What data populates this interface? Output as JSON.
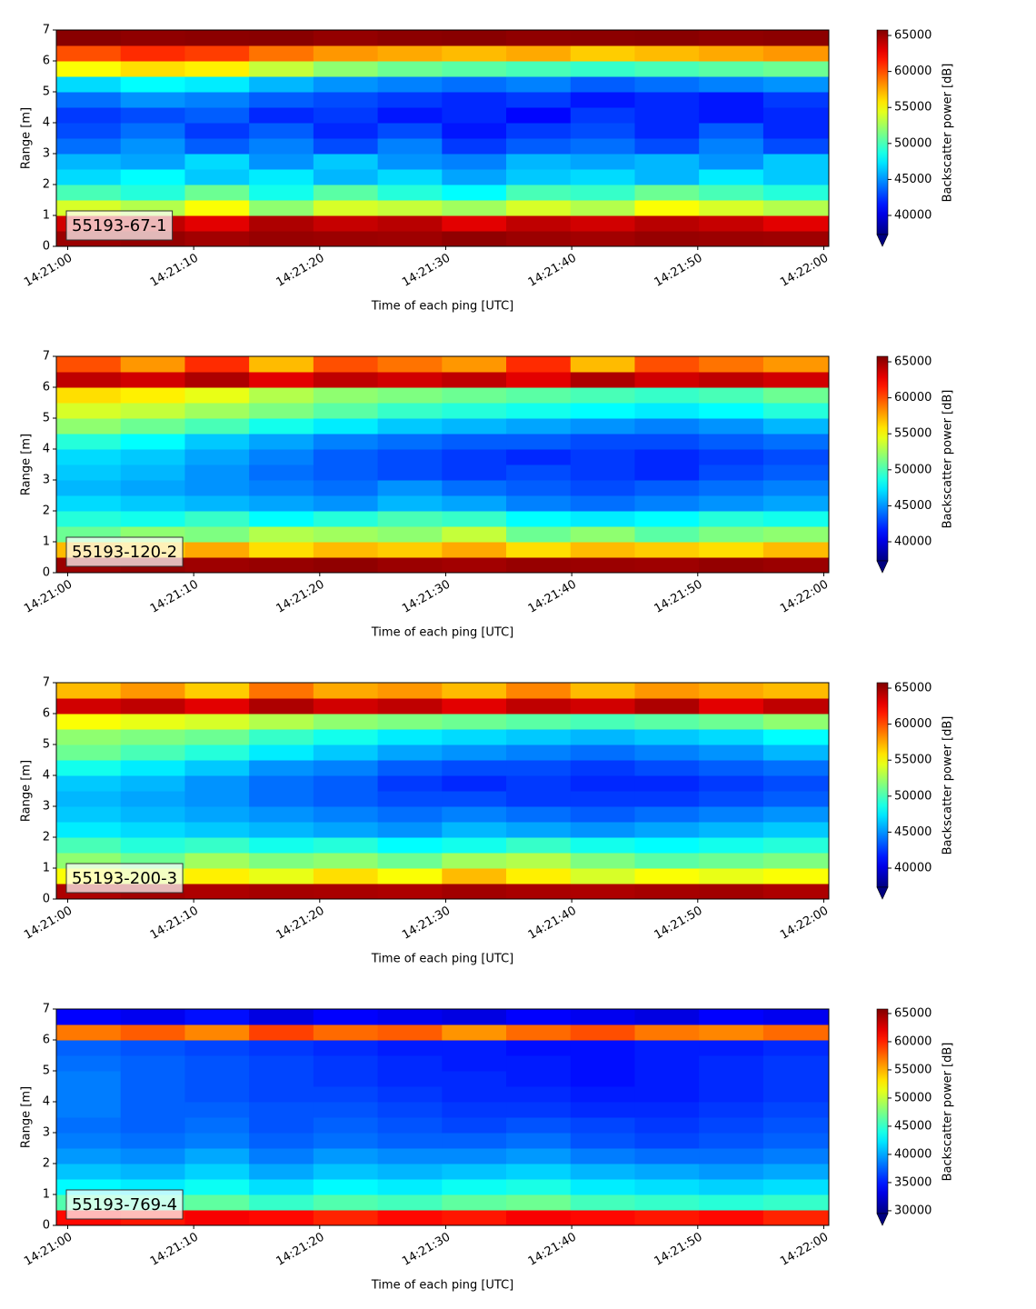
{
  "chart_data": [
    {
      "type": "heatmap",
      "label": "55193-67-1",
      "xlabel": "Time of each ping [UTC]",
      "ylabel": "Range [m]",
      "colorbar_label": "Backscatter power [dB]",
      "colormap": "jet",
      "xlim": [
        51659.1,
        51720.4
      ],
      "xticks": [
        {
          "value": 51660,
          "label": "14:21:00"
        },
        {
          "value": 51670,
          "label": "14:21:10"
        },
        {
          "value": 51680,
          "label": "14:21:20"
        },
        {
          "value": 51690,
          "label": "14:21:30"
        },
        {
          "value": 51700,
          "label": "14:21:40"
        },
        {
          "value": 51710,
          "label": "14:21:50"
        },
        {
          "value": 51720,
          "label": "14:22:00"
        }
      ],
      "ylim": [
        0,
        7
      ],
      "yticks": [
        0,
        1,
        2,
        3,
        4,
        5,
        6,
        7
      ],
      "clim": [
        37350,
        65760
      ],
      "cticks": [
        40000,
        45000,
        50000,
        55000,
        60000,
        65000
      ],
      "xbins": [
        51659.1,
        51664.2,
        51669.3,
        51674.4,
        51679.5,
        51684.6,
        51689.7,
        51694.8,
        51699.9,
        51705.0,
        51710.1,
        51715.2,
        51720.4
      ],
      "ybins": [
        0,
        0.5,
        1,
        1.5,
        2,
        2.5,
        3,
        3.5,
        4,
        4.5,
        5,
        5.5,
        6,
        6.5,
        7
      ],
      "z": [
        [
          65000,
          65200,
          64800,
          65100,
          65000,
          64900,
          65300,
          65000,
          64800,
          65100,
          65000,
          64900
        ],
        [
          63500,
          64000,
          63000,
          64500,
          63800,
          64200,
          63000,
          64000,
          63500,
          64200,
          63800,
          63000
        ],
        [
          54000,
          53000,
          55000,
          52000,
          54000,
          53500,
          52500,
          54000,
          53000,
          55000,
          54000,
          53000
        ],
        [
          50000,
          49000,
          51000,
          48500,
          50500,
          49000,
          48000,
          50000,
          49500,
          51000,
          50000,
          49000
        ],
        [
          47000,
          48000,
          46500,
          47500,
          46000,
          47000,
          45500,
          46500,
          47000,
          46000,
          47500,
          46500
        ],
        [
          46000,
          45500,
          47000,
          45000,
          46500,
          45000,
          44500,
          46000,
          45500,
          46000,
          45000,
          46500
        ],
        [
          44000,
          45000,
          43500,
          44500,
          43000,
          44500,
          42500,
          43500,
          44000,
          43000,
          44500,
          43000
        ],
        [
          43000,
          44000,
          42500,
          43500,
          42000,
          43000,
          41500,
          42500,
          43000,
          42000,
          43500,
          42000
        ],
        [
          42500,
          43000,
          43500,
          42000,
          42500,
          41500,
          42000,
          41000,
          42500,
          42000,
          41500,
          42000
        ],
        [
          44000,
          45000,
          44500,
          43500,
          43000,
          42500,
          42000,
          42500,
          41500,
          42000,
          41500,
          42500
        ],
        [
          47000,
          48000,
          47500,
          46000,
          45000,
          44500,
          44000,
          44500,
          43500,
          44000,
          44500,
          45000
        ],
        [
          55000,
          56000,
          55500,
          53500,
          52000,
          51000,
          50500,
          50000,
          49500,
          50000,
          50500,
          51000
        ],
        [
          60000,
          61000,
          60500,
          59000,
          58000,
          57500,
          57000,
          57500,
          56500,
          57000,
          57500,
          58000
        ],
        [
          65500,
          65300,
          65400,
          65500,
          65200,
          65400,
          65500,
          65300,
          65400,
          65500,
          65300,
          65400
        ]
      ]
    },
    {
      "type": "heatmap",
      "label": "55193-120-2",
      "xlabel": "Time of each ping [UTC]",
      "ylabel": "Range [m]",
      "colorbar_label": "Backscatter power [dB]",
      "colormap": "jet",
      "xlim": [
        51659.1,
        51720.4
      ],
      "xticks": [
        {
          "value": 51660,
          "label": "14:21:00"
        },
        {
          "value": 51670,
          "label": "14:21:10"
        },
        {
          "value": 51680,
          "label": "14:21:20"
        },
        {
          "value": 51690,
          "label": "14:21:30"
        },
        {
          "value": 51700,
          "label": "14:21:40"
        },
        {
          "value": 51710,
          "label": "14:21:50"
        },
        {
          "value": 51720,
          "label": "14:22:00"
        }
      ],
      "ylim": [
        0,
        7
      ],
      "yticks": [
        0,
        1,
        2,
        3,
        4,
        5,
        6,
        7
      ],
      "clim": [
        37350,
        65760
      ],
      "cticks": [
        40000,
        45000,
        50000,
        55000,
        60000,
        65000
      ],
      "xbins": [
        51659.1,
        51664.2,
        51669.3,
        51674.4,
        51679.5,
        51684.6,
        51689.7,
        51694.8,
        51699.9,
        51705.0,
        51710.1,
        51715.2,
        51720.4
      ],
      "ybins": [
        0,
        0.5,
        1,
        1.5,
        2,
        2.5,
        3,
        3.5,
        4,
        4.5,
        5,
        5.5,
        6,
        6.5,
        7
      ],
      "z": [
        [
          65000,
          65200,
          64900,
          65100,
          65300,
          65000,
          64800,
          65100,
          65000,
          64900,
          65200,
          65000
        ],
        [
          57000,
          56500,
          57500,
          56000,
          57000,
          56500,
          57500,
          56000,
          57000,
          56500,
          56000,
          57000
        ],
        [
          51000,
          52000,
          51500,
          53000,
          52500,
          52000,
          53500,
          51000,
          52000,
          50500,
          51500,
          52000
        ],
        [
          49000,
          48500,
          49500,
          48000,
          49000,
          50000,
          49500,
          48000,
          47500,
          48000,
          49000,
          48500
        ],
        [
          47000,
          46500,
          46000,
          45500,
          45000,
          46000,
          45500,
          44500,
          44000,
          44500,
          45000,
          45500
        ],
        [
          46000,
          45500,
          45000,
          44500,
          44000,
          45000,
          44000,
          43500,
          43000,
          43500,
          44000,
          44500
        ],
        [
          46500,
          46000,
          45000,
          44000,
          43500,
          43000,
          42500,
          43000,
          42500,
          42000,
          43000,
          43500
        ],
        [
          47000,
          46500,
          45500,
          44500,
          43500,
          43000,
          42500,
          42000,
          42500,
          42000,
          42500,
          43000
        ],
        [
          49000,
          48000,
          46500,
          45500,
          44500,
          44000,
          43500,
          43500,
          43000,
          43000,
          43500,
          44000
        ],
        [
          52000,
          51000,
          50000,
          48500,
          47500,
          46500,
          46000,
          45500,
          45000,
          44500,
          45000,
          46000
        ],
        [
          54000,
          53500,
          52500,
          51500,
          50500,
          49500,
          49000,
          48500,
          48000,
          47500,
          48000,
          49000
        ],
        [
          56000,
          55500,
          54500,
          53000,
          52000,
          51500,
          51000,
          50500,
          50000,
          49500,
          50000,
          51000
        ],
        [
          64000,
          63500,
          64500,
          63000,
          64000,
          63500,
          64000,
          63000,
          64500,
          63500,
          64000,
          63500
        ],
        [
          60000,
          58000,
          61000,
          57000,
          60000,
          59000,
          58000,
          61000,
          57000,
          60000,
          59000,
          58000
        ]
      ]
    },
    {
      "type": "heatmap",
      "label": "55193-200-3",
      "xlabel": "Time of each ping [UTC]",
      "ylabel": "Range [m]",
      "colorbar_label": "Backscatter power [dB]",
      "colormap": "jet",
      "xlim": [
        51659.1,
        51720.4
      ],
      "xticks": [
        {
          "value": 51660,
          "label": "14:21:00"
        },
        {
          "value": 51670,
          "label": "14:21:10"
        },
        {
          "value": 51680,
          "label": "14:21:20"
        },
        {
          "value": 51690,
          "label": "14:21:30"
        },
        {
          "value": 51700,
          "label": "14:21:40"
        },
        {
          "value": 51710,
          "label": "14:21:50"
        },
        {
          "value": 51720,
          "label": "14:22:00"
        }
      ],
      "ylim": [
        0,
        7
      ],
      "yticks": [
        0,
        1,
        2,
        3,
        4,
        5,
        6,
        7
      ],
      "clim": [
        37350,
        65760
      ],
      "cticks": [
        40000,
        45000,
        50000,
        55000,
        60000,
        65000
      ],
      "xbins": [
        51659.1,
        51664.2,
        51669.3,
        51674.4,
        51679.5,
        51684.6,
        51689.7,
        51694.8,
        51699.9,
        51705.0,
        51710.1,
        51715.2,
        51720.4
      ],
      "ybins": [
        0,
        0.5,
        1,
        1.5,
        2,
        2.5,
        3,
        3.5,
        4,
        4.5,
        5,
        5.5,
        6,
        6.5,
        7
      ],
      "z": [
        [
          64500,
          64800,
          64500,
          64700,
          64600,
          64500,
          64800,
          64600,
          64500,
          64700,
          64800,
          64500
        ],
        [
          55000,
          54000,
          55500,
          54500,
          56000,
          55000,
          57000,
          55500,
          54000,
          55000,
          54500,
          55000
        ],
        [
          52000,
          51000,
          52500,
          51500,
          52000,
          51000,
          52500,
          53000,
          51500,
          50500,
          51000,
          51500
        ],
        [
          50000,
          49000,
          49500,
          48500,
          49000,
          48000,
          48500,
          49500,
          48500,
          48000,
          48500,
          49000
        ],
        [
          47500,
          47000,
          46500,
          46000,
          45500,
          45000,
          46000,
          45500,
          45000,
          45500,
          46000,
          46500
        ],
        [
          46500,
          46000,
          45500,
          45000,
          44500,
          44000,
          44500,
          44000,
          43500,
          44000,
          44500,
          45000
        ],
        [
          46000,
          45500,
          45000,
          44000,
          43500,
          43000,
          43000,
          42500,
          42500,
          42500,
          43000,
          43500
        ],
        [
          46500,
          46000,
          45000,
          44000,
          43500,
          42500,
          42000,
          42500,
          42000,
          42000,
          42500,
          43000
        ],
        [
          48500,
          47500,
          46500,
          45000,
          44500,
          43500,
          43000,
          43000,
          42500,
          43000,
          43500,
          44000
        ],
        [
          51000,
          50000,
          49000,
          47500,
          46500,
          45500,
          45000,
          44500,
          44000,
          44500,
          45000,
          46000
        ],
        [
          52000,
          51500,
          51000,
          49500,
          48500,
          47500,
          47000,
          46500,
          46000,
          46500,
          47000,
          48000
        ],
        [
          55000,
          54500,
          54000,
          53000,
          52000,
          51500,
          51000,
          50500,
          50000,
          50500,
          51000,
          52000
        ],
        [
          63500,
          64000,
          63000,
          64500,
          63500,
          64000,
          63000,
          64000,
          63500,
          64500,
          63000,
          64000
        ],
        [
          57000,
          58000,
          56500,
          59000,
          57500,
          58000,
          57000,
          58500,
          57000,
          58000,
          57500,
          57000
        ]
      ]
    },
    {
      "type": "heatmap",
      "label": "55193-769-4",
      "xlabel": "Time of each ping [UTC]",
      "ylabel": "Range [m]",
      "colorbar_label": "Backscatter power [dB]",
      "colormap": "jet",
      "xlim": [
        51659.1,
        51720.4
      ],
      "xticks": [
        {
          "value": 51660,
          "label": "14:21:00"
        },
        {
          "value": 51670,
          "label": "14:21:10"
        },
        {
          "value": 51680,
          "label": "14:21:20"
        },
        {
          "value": 51690,
          "label": "14:21:30"
        },
        {
          "value": 51700,
          "label": "14:21:40"
        },
        {
          "value": 51710,
          "label": "14:21:50"
        },
        {
          "value": 51720,
          "label": "14:22:00"
        }
      ],
      "ylim": [
        0,
        7
      ],
      "yticks": [
        0,
        1,
        2,
        3,
        4,
        5,
        6,
        7
      ],
      "clim": [
        29500,
        65800
      ],
      "cticks": [
        30000,
        35000,
        40000,
        45000,
        50000,
        55000,
        60000,
        65000
      ],
      "xbins": [
        51659.1,
        51664.2,
        51669.3,
        51674.4,
        51679.5,
        51684.6,
        51689.7,
        51694.8,
        51699.9,
        51705.0,
        51710.1,
        51715.2,
        51720.4
      ],
      "ybins": [
        0,
        0.5,
        1,
        1.5,
        2,
        2.5,
        3,
        3.5,
        4,
        4.5,
        5,
        5.5,
        6,
        6.5,
        7
      ],
      "z": [
        [
          61000,
          60500,
          61500,
          61000,
          60000,
          61000,
          60500,
          61500,
          61000,
          60500,
          61000,
          60000
        ],
        [
          46000,
          45500,
          46500,
          45000,
          46000,
          45500,
          46500,
          47000,
          45500,
          45000,
          44500,
          45000
        ],
        [
          43000,
          42500,
          43500,
          42000,
          43000,
          42500,
          43500,
          44000,
          42500,
          42000,
          41500,
          42000
        ],
        [
          41000,
          40500,
          41500,
          40000,
          41000,
          40500,
          41000,
          41500,
          40500,
          40000,
          39500,
          40000
        ],
        [
          39500,
          39000,
          40000,
          38500,
          39500,
          39000,
          39000,
          39500,
          38500,
          38000,
          38000,
          38500
        ],
        [
          38500,
          38000,
          38500,
          37500,
          38000,
          37500,
          37500,
          38000,
          37000,
          36500,
          37000,
          37500
        ],
        [
          38000,
          37500,
          38000,
          37000,
          37500,
          37000,
          36500,
          37000,
          36500,
          36000,
          36500,
          37000
        ],
        [
          38500,
          37500,
          37500,
          37000,
          37000,
          36500,
          36000,
          36000,
          35500,
          35500,
          36000,
          36500
        ],
        [
          38500,
          37500,
          37000,
          36500,
          36500,
          36000,
          35500,
          35500,
          35000,
          35000,
          35500,
          36000
        ],
        [
          38500,
          37500,
          37000,
          36500,
          36000,
          35500,
          35500,
          35000,
          34500,
          35000,
          35500,
          36000
        ],
        [
          38000,
          37500,
          37000,
          36500,
          36000,
          35500,
          35000,
          35000,
          34500,
          35000,
          35500,
          36000
        ],
        [
          37500,
          37000,
          36500,
          36000,
          35500,
          35000,
          35000,
          34500,
          34500,
          35000,
          35000,
          35500
        ],
        [
          57000,
          58000,
          56500,
          59000,
          57500,
          58000,
          56000,
          57500,
          58500,
          57000,
          56500,
          57500
        ],
        [
          34000,
          33500,
          34500,
          33000,
          34000,
          33500,
          33000,
          34000,
          33500,
          33000,
          34000,
          33500
        ]
      ]
    }
  ]
}
